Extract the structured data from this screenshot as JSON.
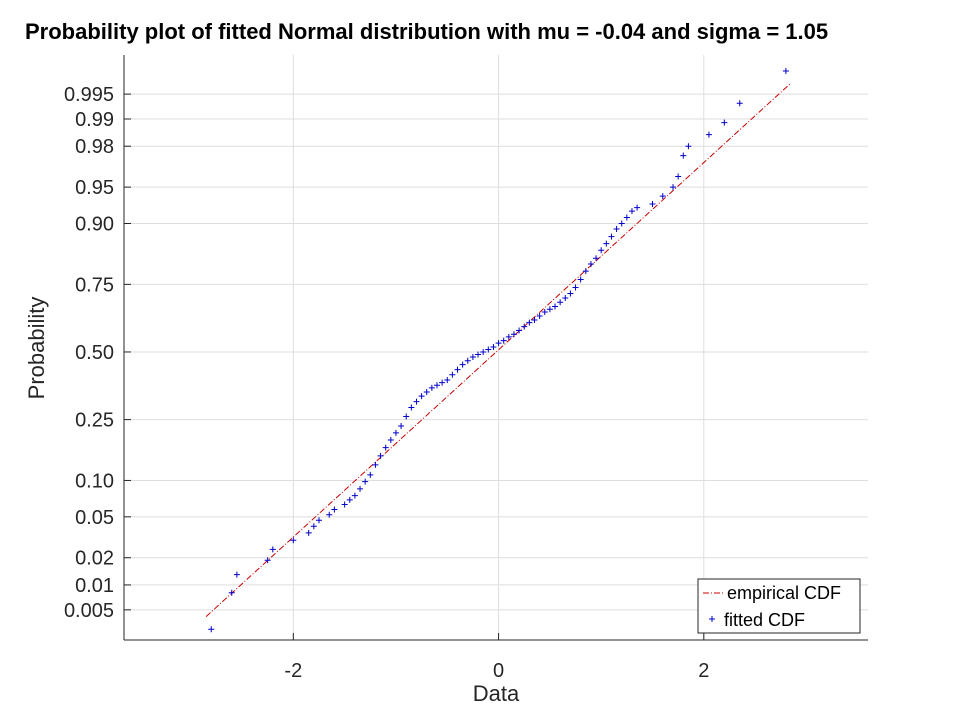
{
  "chart_data": {
    "type": "scatter",
    "title": "Probability plot of fitted Normal distribution with mu = -0.04 and sigma = 1.05",
    "xlabel": "Data",
    "ylabel": "Probability",
    "xlim": [
      -3.65,
      3.6
    ],
    "xticks": [
      -2,
      0,
      2
    ],
    "xtick_labels": [
      "-2",
      "0",
      "2"
    ],
    "y_scale": "normal-probability",
    "ylim": [
      0.002,
      0.9985
    ],
    "yticks": [
      0.005,
      0.01,
      0.02,
      0.05,
      0.1,
      0.25,
      0.5,
      0.75,
      0.9,
      0.95,
      0.98,
      0.99,
      0.995
    ],
    "ytick_labels": [
      "0.005",
      "0.01",
      "0.02",
      "0.05",
      "0.10",
      "0.25",
      "0.50",
      "0.75",
      "0.90",
      "0.95",
      "0.98",
      "0.99",
      "0.995"
    ],
    "grid": true,
    "legend_position": "bottom-right",
    "fit": {
      "mu": -0.04,
      "sigma": 1.05
    },
    "series": [
      {
        "name": "empirical CDF",
        "style": "dash-dot line",
        "color": "#cc0000",
        "x": [
          -2.85,
          2.85
        ],
        "y": [
          0.0041,
          0.9964
        ]
      },
      {
        "name": "fitted CDF",
        "style": "plus markers",
        "color": "#0000cc",
        "x": [
          -2.8,
          -2.6,
          -2.55,
          -2.25,
          -2.2,
          -2.0,
          -1.85,
          -1.8,
          -1.75,
          -1.65,
          -1.6,
          -1.5,
          -1.45,
          -1.4,
          -1.35,
          -1.3,
          -1.25,
          -1.2,
          -1.15,
          -1.1,
          -1.05,
          -1.0,
          -0.95,
          -0.9,
          -0.85,
          -0.8,
          -0.75,
          -0.7,
          -0.65,
          -0.6,
          -0.55,
          -0.5,
          -0.45,
          -0.4,
          -0.35,
          -0.3,
          -0.25,
          -0.2,
          -0.15,
          -0.1,
          -0.05,
          0.0,
          0.05,
          0.1,
          0.15,
          0.2,
          0.25,
          0.3,
          0.35,
          0.4,
          0.45,
          0.5,
          0.55,
          0.6,
          0.65,
          0.7,
          0.75,
          0.8,
          0.85,
          0.9,
          0.95,
          1.0,
          1.05,
          1.1,
          1.15,
          1.2,
          1.25,
          1.3,
          1.35,
          1.5,
          1.6,
          1.7,
          1.75,
          1.8,
          1.85,
          2.05,
          2.2,
          2.35,
          2.8
        ],
        "y": [
          0.0028,
          0.0081,
          0.0131,
          0.0188,
          0.0244,
          0.0301,
          0.0355,
          0.041,
          0.0466,
          0.0522,
          0.058,
          0.064,
          0.07,
          0.076,
          0.086,
          0.098,
          0.11,
          0.13,
          0.15,
          0.17,
          0.19,
          0.21,
          0.23,
          0.26,
          0.29,
          0.31,
          0.33,
          0.345,
          0.36,
          0.37,
          0.38,
          0.39,
          0.41,
          0.43,
          0.45,
          0.465,
          0.48,
          0.49,
          0.5,
          0.51,
          0.52,
          0.535,
          0.545,
          0.56,
          0.57,
          0.585,
          0.6,
          0.615,
          0.625,
          0.64,
          0.655,
          0.665,
          0.675,
          0.69,
          0.705,
          0.72,
          0.74,
          0.765,
          0.79,
          0.81,
          0.825,
          0.845,
          0.86,
          0.875,
          0.89,
          0.9,
          0.91,
          0.92,
          0.925,
          0.93,
          0.94,
          0.95,
          0.96,
          0.975,
          0.98,
          0.985,
          0.989,
          0.9935,
          0.9975
        ]
      }
    ]
  }
}
